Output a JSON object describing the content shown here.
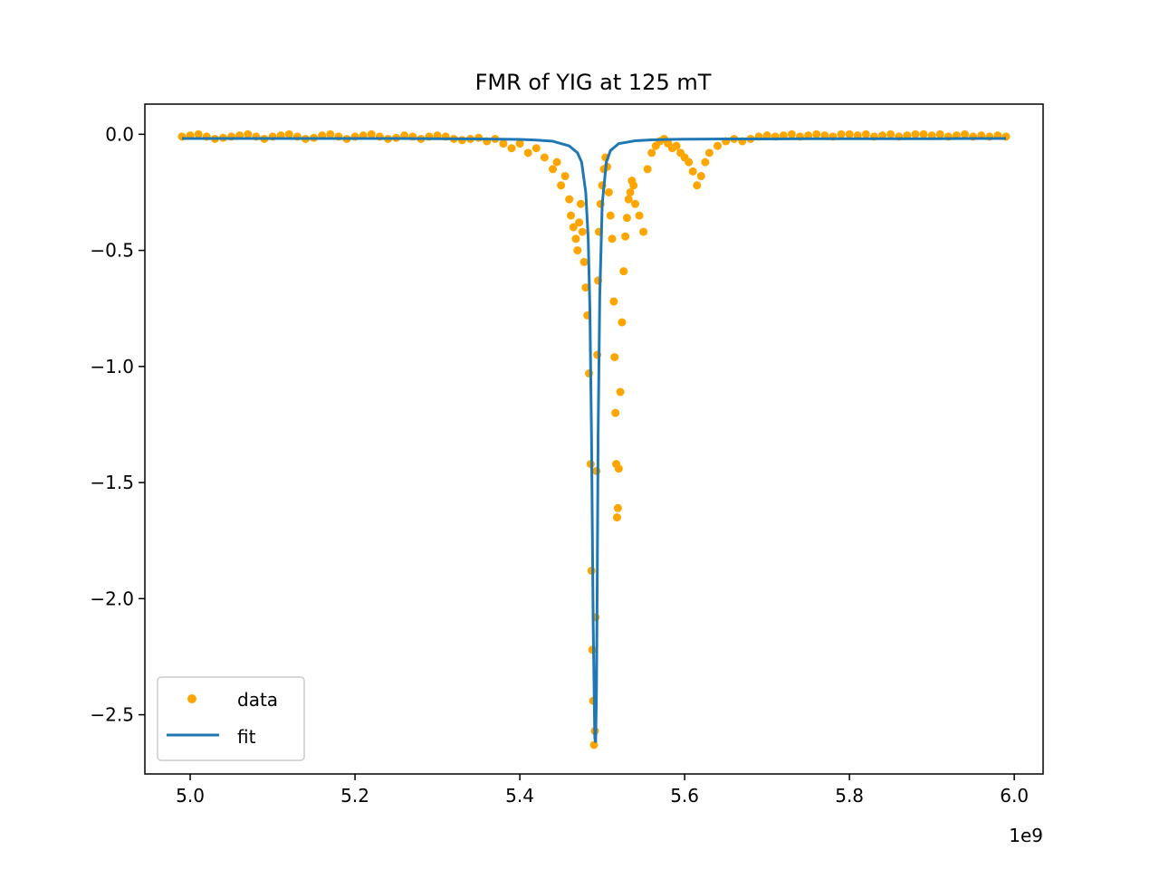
{
  "chart_data": {
    "type": "scatter",
    "title": "FMR of YIG at 125 mT",
    "xlabel": "",
    "ylabel": "",
    "x_offset_label": "1e9",
    "xlim": [
      4.945,
      6.035
    ],
    "ylim": [
      -2.755,
      0.13
    ],
    "x_ticks": [
      5.0,
      5.2,
      5.4,
      5.6,
      5.8,
      6.0
    ],
    "x_tick_labels": [
      "5.0",
      "5.2",
      "5.4",
      "5.6",
      "5.8",
      "6.0"
    ],
    "y_ticks": [
      0.0,
      -0.5,
      -1.0,
      -1.5,
      -2.0,
      -2.5
    ],
    "y_tick_labels": [
      "0.0",
      "−0.5",
      "−1.0",
      "−1.5",
      "−2.0",
      "−2.5"
    ],
    "grid": false,
    "legend_position": "lower-left",
    "series": [
      {
        "name": "data",
        "kind": "scatter",
        "color": "#ffa500",
        "x": [
          4.99,
          5.0,
          5.01,
          5.02,
          5.03,
          5.04,
          5.05,
          5.06,
          5.07,
          5.08,
          5.09,
          5.1,
          5.11,
          5.12,
          5.13,
          5.14,
          5.15,
          5.16,
          5.17,
          5.18,
          5.19,
          5.2,
          5.21,
          5.22,
          5.23,
          5.24,
          5.25,
          5.26,
          5.27,
          5.28,
          5.29,
          5.3,
          5.31,
          5.32,
          5.33,
          5.34,
          5.35,
          5.36,
          5.37,
          5.38,
          5.39,
          5.4,
          5.41,
          5.42,
          5.43,
          5.44,
          5.445,
          5.45,
          5.455,
          5.46,
          5.462,
          5.465,
          5.468,
          5.47,
          5.472,
          5.474,
          5.476,
          5.478,
          5.48,
          5.482,
          5.484,
          5.486,
          5.487,
          5.488,
          5.489,
          5.49,
          5.491,
          5.492,
          5.493,
          5.494,
          5.495,
          5.496,
          5.498,
          5.5,
          5.502,
          5.504,
          5.506,
          5.508,
          5.51,
          5.512,
          5.514,
          5.515,
          5.516,
          5.517,
          5.518,
          5.519,
          5.52,
          5.522,
          5.524,
          5.526,
          5.528,
          5.53,
          5.532,
          5.534,
          5.536,
          5.538,
          5.54,
          5.545,
          5.55,
          5.555,
          5.56,
          5.565,
          5.57,
          5.575,
          5.58,
          5.585,
          5.59,
          5.595,
          5.6,
          5.605,
          5.61,
          5.615,
          5.62,
          5.625,
          5.63,
          5.64,
          5.65,
          5.66,
          5.67,
          5.68,
          5.69,
          5.7,
          5.71,
          5.72,
          5.73,
          5.74,
          5.75,
          5.76,
          5.77,
          5.78,
          5.79,
          5.8,
          5.81,
          5.82,
          5.83,
          5.84,
          5.85,
          5.86,
          5.87,
          5.88,
          5.89,
          5.9,
          5.91,
          5.92,
          5.93,
          5.94,
          5.95,
          5.96,
          5.97,
          5.98,
          5.99
        ],
        "y": [
          -0.01,
          -0.005,
          -0.0,
          -0.01,
          -0.02,
          -0.015,
          -0.01,
          -0.005,
          -0.0,
          -0.01,
          -0.02,
          -0.01,
          -0.005,
          -0.0,
          -0.01,
          -0.02,
          -0.015,
          -0.005,
          -0.0,
          -0.01,
          -0.02,
          -0.01,
          -0.005,
          -0.0,
          -0.01,
          -0.02,
          -0.015,
          -0.005,
          -0.01,
          -0.02,
          -0.01,
          -0.005,
          -0.01,
          -0.02,
          -0.025,
          -0.02,
          -0.015,
          -0.03,
          -0.02,
          -0.04,
          -0.06,
          -0.04,
          -0.08,
          -0.06,
          -0.1,
          -0.15,
          -0.12,
          -0.22,
          -0.18,
          -0.28,
          -0.35,
          -0.4,
          -0.45,
          -0.5,
          -0.38,
          -0.3,
          -0.42,
          -0.55,
          -0.66,
          -0.78,
          -1.03,
          -1.42,
          -1.88,
          -2.22,
          -2.44,
          -2.63,
          -2.57,
          -2.08,
          -1.45,
          -0.95,
          -0.63,
          -0.42,
          -0.3,
          -0.22,
          -0.15,
          -0.1,
          -0.14,
          -0.25,
          -0.35,
          -0.45,
          -0.72,
          -0.96,
          -1.2,
          -1.42,
          -1.65,
          -1.61,
          -1.44,
          -1.11,
          -0.81,
          -0.59,
          -0.44,
          -0.36,
          -0.28,
          -0.25,
          -0.2,
          -0.22,
          -0.3,
          -0.35,
          -0.42,
          -0.15,
          -0.08,
          -0.05,
          -0.03,
          -0.02,
          -0.04,
          -0.06,
          -0.05,
          -0.08,
          -0.1,
          -0.12,
          -0.16,
          -0.22,
          -0.18,
          -0.12,
          -0.08,
          -0.05,
          -0.03,
          -0.02,
          -0.03,
          -0.02,
          -0.01,
          -0.005,
          -0.01,
          -0.005,
          -0.0,
          -0.01,
          -0.005,
          -0.0,
          -0.005,
          -0.01,
          -0.0,
          0.0,
          -0.005,
          -0.0,
          -0.01,
          -0.005,
          -0.0,
          -0.01,
          -0.005,
          -0.0,
          0.0,
          -0.005,
          -0.0,
          -0.01,
          -0.005,
          -0.0,
          -0.01,
          -0.005,
          -0.01,
          -0.005,
          -0.01
        ]
      },
      {
        "name": "fit",
        "kind": "line",
        "color": "#1f77b4",
        "x": [
          4.99,
          5.05,
          5.1,
          5.15,
          5.2,
          5.25,
          5.3,
          5.35,
          5.4,
          5.42,
          5.44,
          5.46,
          5.47,
          5.475,
          5.48,
          5.483,
          5.485,
          5.487,
          5.489,
          5.491,
          5.492,
          5.493,
          5.494,
          5.495,
          5.497,
          5.5,
          5.505,
          5.51,
          5.52,
          5.54,
          5.56,
          5.58,
          5.6,
          5.65,
          5.7,
          5.75,
          5.8,
          5.85,
          5.9,
          5.95,
          5.99
        ],
        "y": [
          -0.018,
          -0.018,
          -0.018,
          -0.018,
          -0.018,
          -0.018,
          -0.019,
          -0.02,
          -0.022,
          -0.025,
          -0.03,
          -0.05,
          -0.08,
          -0.12,
          -0.25,
          -0.45,
          -0.75,
          -1.3,
          -2.1,
          -2.6,
          -2.62,
          -2.4,
          -1.9,
          -1.3,
          -0.7,
          -0.3,
          -0.12,
          -0.07,
          -0.04,
          -0.028,
          -0.024,
          -0.022,
          -0.021,
          -0.02,
          -0.02,
          -0.019,
          -0.019,
          -0.019,
          -0.019,
          -0.018,
          -0.018
        ]
      }
    ]
  }
}
